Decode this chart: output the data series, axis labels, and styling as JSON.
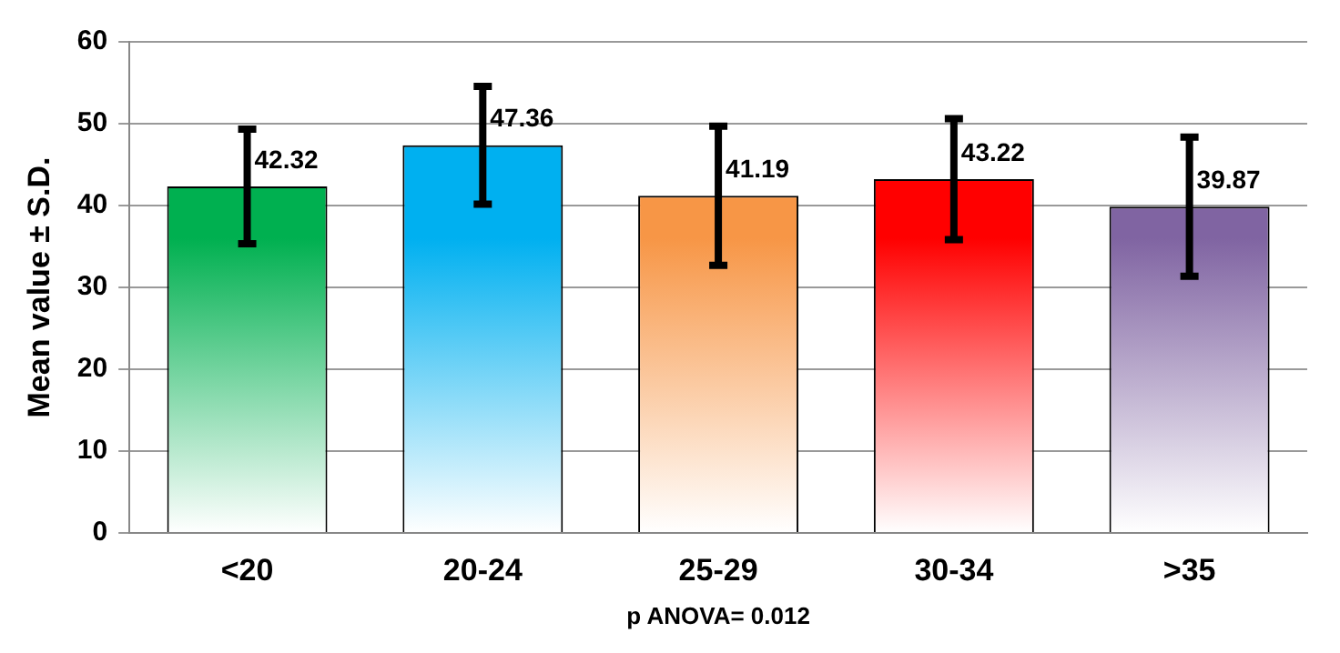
{
  "chart_data": {
    "type": "bar",
    "ylabel": "Mean value ± S.D.",
    "xlabel": "p ANOVA= 0.012",
    "categories": [
      "<20",
      "20-24",
      "25-29",
      "30-34",
      ">35"
    ],
    "values": [
      42.32,
      47.36,
      41.19,
      43.22,
      39.87
    ],
    "colors": [
      "#00b050",
      "#00b0f0",
      "#f79646",
      "#ff0000",
      "#8064a2"
    ],
    "errors": [
      7,
      7.2,
      8.5,
      7.4,
      8.5
    ],
    "data_labels": true,
    "ylim": [
      0,
      60
    ],
    "yticks": [
      0,
      10,
      20,
      30,
      40,
      50,
      60
    ],
    "grid": "y"
  }
}
